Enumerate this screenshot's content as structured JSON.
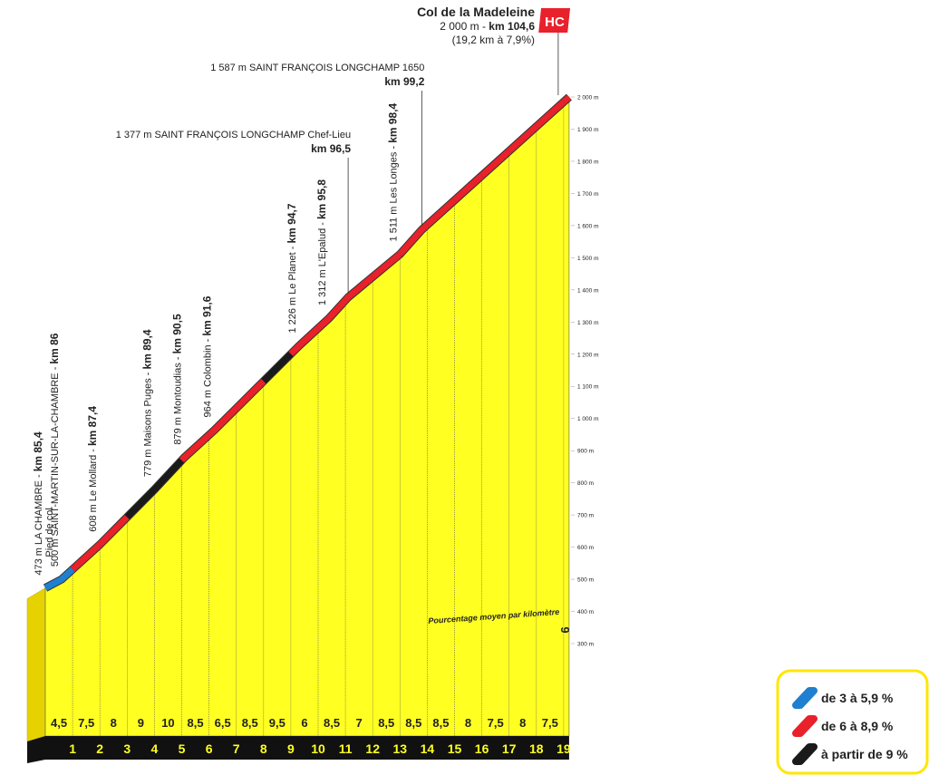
{
  "chart_data": {
    "type": "area",
    "title": "Col de la Madeleine",
    "summit": {
      "altitude": "2 000 m - ",
      "km": "km 104,6",
      "note": "(19,2 km à 7,9%)",
      "category": "HC"
    },
    "profile": {
      "x": [
        0,
        0.6,
        2.0,
        4.0,
        5.1,
        6.2,
        9.3,
        10.4,
        11.1,
        13.0,
        13.8,
        19.2
      ],
      "values": [
        473,
        500,
        608,
        779,
        879,
        964,
        1226,
        1312,
        1377,
        1511,
        1587,
        2000
      ],
      "color": "#ffff22"
    },
    "landmarks": [
      {
        "name": "473 m LA CHAMBRE - ",
        "km": "km 85,4",
        "note": "Pied de col"
      },
      {
        "name": "500 m SAINT-MARTIN-SUR-LA-CHAMBRE - ",
        "km": "km 86"
      },
      {
        "name": "608 m Le Mollard - ",
        "km": "km 87,4"
      },
      {
        "name": "779 m Maisons Puges - ",
        "km": "km 89,4"
      },
      {
        "name": "879 m Montoudias - ",
        "km": "km 90,5"
      },
      {
        "name": "964 m Colombin - ",
        "km": "km 91,6"
      },
      {
        "name": "1 226 m Le Planet - ",
        "km": "km 94,7"
      },
      {
        "name": "1 312 m L'Epalud - ",
        "km": "km 95,8"
      },
      {
        "name": "1 377 m SAINT FRANÇOIS LONGCHAMP Chef-Lieu",
        "km": "km 96,5",
        "orientation": "horizontal"
      },
      {
        "name": "1 511 m Les Longes - ",
        "km": "km 98,4"
      },
      {
        "name": "1 587 m SAINT FRANÇOIS LONGCHAMP 1650",
        "km": "km 99,2",
        "orientation": "horizontal"
      }
    ],
    "ylim": [
      300,
      2000
    ],
    "yticks": [
      {
        "value": 2000,
        "label": "2 000 m"
      },
      {
        "value": 1900,
        "label": "1 900 m"
      },
      {
        "value": 1800,
        "label": "1 800 m"
      },
      {
        "value": 1700,
        "label": "1 700 m"
      },
      {
        "value": 1600,
        "label": "1 600 m"
      },
      {
        "value": 1500,
        "label": "1 500 m"
      },
      {
        "value": 1400,
        "label": "1 400 m"
      },
      {
        "value": 1300,
        "label": "1 300 m"
      },
      {
        "value": 1200,
        "label": "1 200 m"
      },
      {
        "value": 1100,
        "label": "1 100 m"
      },
      {
        "value": 1000,
        "label": "1 000 m"
      },
      {
        "value": 900,
        "label": "900 m"
      },
      {
        "value": 800,
        "label": "800 m"
      },
      {
        "value": 700,
        "label": "700 m"
      },
      {
        "value": 600,
        "label": "600 m"
      },
      {
        "value": 500,
        "label": "500 m"
      },
      {
        "value": 400,
        "label": "400 m"
      },
      {
        "value": 300,
        "label": "300 m"
      }
    ],
    "xlim": [
      0,
      19.2
    ],
    "xticks": [
      1,
      2,
      3,
      4,
      5,
      6,
      7,
      8,
      9,
      10,
      11,
      12,
      13,
      14,
      15,
      16,
      17,
      18,
      19
    ],
    "gradients": {
      "title": "Pourcentage moyen par kilomètre",
      "values": [
        4.5,
        7.5,
        8,
        9,
        10,
        8.5,
        6.5,
        8.5,
        9.5,
        6,
        8.5,
        7,
        8.5,
        8.5,
        8.5,
        8,
        7.5,
        8,
        7.5,
        6
      ],
      "value_labels": [
        "4,5",
        "7,5",
        "8",
        "9",
        "10",
        "8,5",
        "6,5",
        "8,5",
        "9,5",
        "6",
        "8,5",
        "7",
        "8,5",
        "8,5",
        "8,5",
        "8",
        "7,5",
        "8",
        "7,5",
        "6"
      ],
      "colors": [
        "#1f7fd0",
        "#e8212b",
        "#e8212b",
        "#1a1a1a",
        "#1a1a1a",
        "#e8212b",
        "#e8212b",
        "#e8212b",
        "#1a1a1a",
        "#e8212b",
        "#e8212b",
        "#e8212b",
        "#e8212b",
        "#e8212b",
        "#e8212b",
        "#e8212b",
        "#e8212b",
        "#e8212b",
        "#e8212b",
        "#e8212b"
      ]
    },
    "legend": [
      {
        "name": "de 3 à 5,9 %",
        "color": "#1f7fd0"
      },
      {
        "name": "de 6 à 8,9 %",
        "color": "#e8212b"
      },
      {
        "name": "à partir de 9 %",
        "color": "#1a1a1a"
      }
    ]
  }
}
